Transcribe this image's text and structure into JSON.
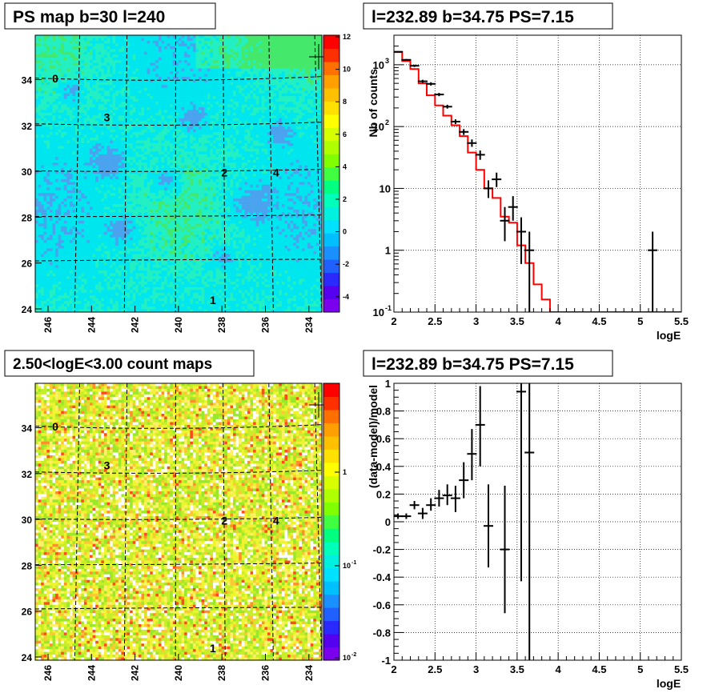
{
  "panels": {
    "tl": {
      "title": "PS map b=30 l=240"
    },
    "tr": {
      "title": "l=232.89 b=34.75 PS=7.15"
    },
    "bl": {
      "title": "2.50<logE<3.00 count maps"
    },
    "br": {
      "title": "l=232.89 b=34.75 PS=7.15"
    }
  },
  "maps": {
    "x_ticks": [
      "246",
      "244",
      "242",
      "240",
      "238",
      "236",
      "234"
    ],
    "y_ticks": [
      "24",
      "26",
      "28",
      "30",
      "32",
      "34"
    ],
    "sources": [
      {
        "label": "0"
      },
      {
        "label": "3"
      },
      {
        "label": "2"
      },
      {
        "label": "4"
      },
      {
        "label": "1"
      }
    ],
    "tl_colorbar_ticks": [
      "12",
      "10",
      "8",
      "6",
      "4",
      "2",
      "0",
      "-2",
      "-4"
    ],
    "bl_colorbar_ticks": [
      "1",
      "10",
      "10"
    ],
    "bl_colorbar_exps": [
      "",
      "-1",
      "-2"
    ]
  },
  "chart_data": [
    {
      "type": "line",
      "title": "l=232.89 b=34.75 PS=7.15",
      "xlabel": "logE",
      "ylabel": "Nb of counts",
      "xlim": [
        2,
        5.5
      ],
      "ylim": [
        0.1,
        3000
      ],
      "log_y": true,
      "grid": true,
      "x_ticks": [
        "2",
        "2.5",
        "3",
        "3.5",
        "4",
        "4.5",
        "5",
        "5.5"
      ],
      "y_ticks": [
        {
          "base": "10",
          "exp": "-1"
        },
        {
          "base": "1",
          "exp": ""
        },
        {
          "base": "10",
          "exp": ""
        },
        {
          "base": "10",
          "exp": "2"
        },
        {
          "base": "10",
          "exp": "3"
        }
      ],
      "series": [
        {
          "kind": "step",
          "color": "#ff0000",
          "x_edges": [
            2.0,
            2.1,
            2.2,
            2.3,
            2.4,
            2.5,
            2.6,
            2.7,
            2.8,
            2.9,
            3.0,
            3.1,
            3.2,
            3.3,
            3.4,
            3.5,
            3.6,
            3.7,
            3.8,
            3.9,
            4.0,
            5.5
          ],
          "values": [
            1600,
            1150,
            850,
            500,
            320,
            220,
            150,
            105,
            70,
            38,
            20,
            10,
            7,
            3.5,
            2.8,
            1.2,
            0.62,
            0.28,
            0.16,
            0.1,
            0.1
          ]
        },
        {
          "kind": "points",
          "color": "#000000",
          "points": [
            {
              "x": 2.05,
              "y": 1620,
              "ylo": 1580,
              "yhi": 1660
            },
            {
              "x": 2.15,
              "y": 1200,
              "ylo": 1160,
              "yhi": 1240
            },
            {
              "x": 2.25,
              "y": 960,
              "ylo": 920,
              "yhi": 1000
            },
            {
              "x": 2.35,
              "y": 540,
              "ylo": 510,
              "yhi": 570
            },
            {
              "x": 2.45,
              "y": 490,
              "ylo": 460,
              "yhi": 520
            },
            {
              "x": 2.55,
              "y": 330,
              "ylo": 310,
              "yhi": 350
            },
            {
              "x": 2.65,
              "y": 210,
              "ylo": 195,
              "yhi": 225
            },
            {
              "x": 2.75,
              "y": 120,
              "ylo": 110,
              "yhi": 131
            },
            {
              "x": 2.85,
              "y": 82,
              "ylo": 73,
              "yhi": 91
            },
            {
              "x": 2.95,
              "y": 54,
              "ylo": 47,
              "yhi": 62
            },
            {
              "x": 3.05,
              "y": 35,
              "ylo": 29,
              "yhi": 41
            },
            {
              "x": 3.15,
              "y": 10,
              "ylo": 7,
              "yhi": 13.5
            },
            {
              "x": 3.25,
              "y": 14,
              "ylo": 10.5,
              "yhi": 18
            },
            {
              "x": 3.35,
              "y": 3,
              "ylo": 1.4,
              "yhi": 5
            },
            {
              "x": 3.45,
              "y": 5,
              "ylo": 3,
              "yhi": 7.5
            },
            {
              "x": 3.55,
              "y": 2,
              "ylo": 0.6,
              "yhi": 3.4
            },
            {
              "x": 3.65,
              "y": 1,
              "ylo": 0.1,
              "yhi": 2
            },
            {
              "x": 5.15,
              "y": 1,
              "ylo": 0.1,
              "yhi": 2
            }
          ]
        }
      ]
    },
    {
      "type": "scatter",
      "title": "l=232.89 b=34.75 PS=7.15",
      "xlabel": "logE",
      "ylabel": "(data-model)/model",
      "xlim": [
        2,
        5.5
      ],
      "ylim": [
        -1,
        1
      ],
      "grid": true,
      "x_ticks": [
        "2",
        "2.5",
        "3",
        "3.5",
        "4",
        "4.5",
        "5",
        "5.5"
      ],
      "y_ticks": [
        "1",
        "0.8",
        "0.6",
        "0.4",
        "0.2",
        "0",
        "-0.2",
        "-0.4",
        "-0.6",
        "-0.8",
        "-1"
      ],
      "series": [
        {
          "kind": "points",
          "color": "#000000",
          "points": [
            {
              "x": 2.05,
              "y": 0.04,
              "ylo": 0.02,
              "yhi": 0.06
            },
            {
              "x": 2.15,
              "y": 0.04,
              "ylo": 0.02,
              "yhi": 0.06
            },
            {
              "x": 2.25,
              "y": 0.12,
              "ylo": 0.09,
              "yhi": 0.15
            },
            {
              "x": 2.35,
              "y": 0.06,
              "ylo": 0.02,
              "yhi": 0.1
            },
            {
              "x": 2.45,
              "y": 0.12,
              "ylo": 0.08,
              "yhi": 0.17
            },
            {
              "x": 2.55,
              "y": 0.17,
              "ylo": 0.11,
              "yhi": 0.23
            },
            {
              "x": 2.65,
              "y": 0.19,
              "ylo": 0.12,
              "yhi": 0.27
            },
            {
              "x": 2.75,
              "y": 0.17,
              "ylo": 0.07,
              "yhi": 0.26
            },
            {
              "x": 2.85,
              "y": 0.3,
              "ylo": 0.17,
              "yhi": 0.43
            },
            {
              "x": 2.95,
              "y": 0.49,
              "ylo": 0.3,
              "yhi": 0.67
            },
            {
              "x": 3.05,
              "y": 0.7,
              "ylo": 0.4,
              "yhi": 0.98
            },
            {
              "x": 3.15,
              "y": -0.03,
              "ylo": -0.33,
              "yhi": 0.27
            },
            {
              "x": 3.35,
              "y": -0.2,
              "ylo": -0.66,
              "yhi": 0.26
            },
            {
              "x": 3.55,
              "y": 0.94,
              "ylo": -0.43,
              "yhi": 1.0
            },
            {
              "x": 3.65,
              "y": 0.5,
              "ylo": -1.0,
              "yhi": 1.0
            }
          ]
        }
      ]
    }
  ]
}
